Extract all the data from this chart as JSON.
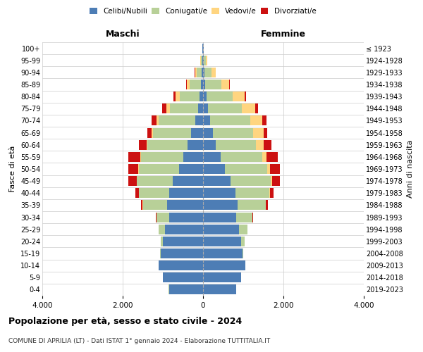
{
  "age_groups": [
    "0-4",
    "5-9",
    "10-14",
    "15-19",
    "20-24",
    "25-29",
    "30-34",
    "35-39",
    "40-44",
    "45-49",
    "50-54",
    "55-59",
    "60-64",
    "65-69",
    "70-74",
    "75-79",
    "80-84",
    "85-89",
    "90-94",
    "95-99",
    "100+"
  ],
  "birth_years": [
    "2019-2023",
    "2014-2018",
    "2009-2013",
    "2004-2008",
    "1999-2003",
    "1994-1998",
    "1989-1993",
    "1984-1988",
    "1979-1983",
    "1974-1978",
    "1969-1973",
    "1964-1968",
    "1959-1963",
    "1954-1958",
    "1949-1953",
    "1944-1948",
    "1939-1943",
    "1934-1938",
    "1929-1933",
    "1924-1928",
    "≤ 1923"
  ],
  "males": {
    "celibe": [
      850,
      1000,
      1100,
      1050,
      1000,
      950,
      850,
      900,
      850,
      750,
      600,
      500,
      380,
      290,
      200,
      130,
      80,
      50,
      30,
      20,
      10
    ],
    "coniugato": [
      1,
      2,
      5,
      20,
      50,
      150,
      300,
      600,
      750,
      900,
      1000,
      1050,
      1000,
      950,
      900,
      700,
      500,
      280,
      120,
      30,
      5
    ],
    "vedovo": [
      0,
      0,
      0,
      0,
      0,
      1,
      1,
      2,
      3,
      5,
      8,
      10,
      20,
      40,
      60,
      80,
      100,
      80,
      50,
      15,
      2
    ],
    "divorziato": [
      0,
      0,
      1,
      2,
      5,
      10,
      20,
      50,
      80,
      200,
      250,
      300,
      200,
      100,
      120,
      100,
      50,
      15,
      10,
      5,
      1
    ]
  },
  "females": {
    "nubile": [
      820,
      950,
      1050,
      980,
      950,
      900,
      820,
      860,
      800,
      680,
      550,
      430,
      320,
      250,
      180,
      120,
      80,
      50,
      30,
      20,
      10
    ],
    "coniugata": [
      1,
      3,
      8,
      25,
      80,
      200,
      400,
      700,
      850,
      1000,
      1050,
      1050,
      1000,
      1000,
      1000,
      850,
      650,
      400,
      180,
      50,
      10
    ],
    "vedova": [
      0,
      0,
      0,
      0,
      1,
      3,
      5,
      10,
      20,
      40,
      60,
      100,
      180,
      250,
      300,
      320,
      300,
      200,
      100,
      30,
      5
    ],
    "divorziata": [
      0,
      0,
      1,
      2,
      5,
      10,
      20,
      50,
      80,
      200,
      250,
      280,
      200,
      100,
      100,
      80,
      40,
      15,
      10,
      5,
      1
    ]
  },
  "colors": {
    "celibe": "#4d7db5",
    "coniugato": "#b8d098",
    "vedovo": "#ffd580",
    "divorziato": "#cc1111"
  },
  "xlim": 4000,
  "xticks": [
    -4000,
    -2000,
    0,
    2000,
    4000
  ],
  "xlabels": [
    "4.000",
    "2.000",
    "0",
    "2.000",
    "4.000"
  ],
  "title": "Popolazione per età, sesso e stato civile - 2024",
  "subtitle": "COMUNE DI APRILIA (LT) - Dati ISTAT 1° gennaio 2024 - Elaborazione TUTTITALIA.IT",
  "ylabel_left": "Fasce di età",
  "ylabel_right": "Anni di nascita",
  "label_maschi": "Maschi",
  "label_femmine": "Femmine",
  "legend_labels": [
    "Celibi/Nubili",
    "Coniugati/e",
    "Vedovi/e",
    "Divorziati/e"
  ]
}
